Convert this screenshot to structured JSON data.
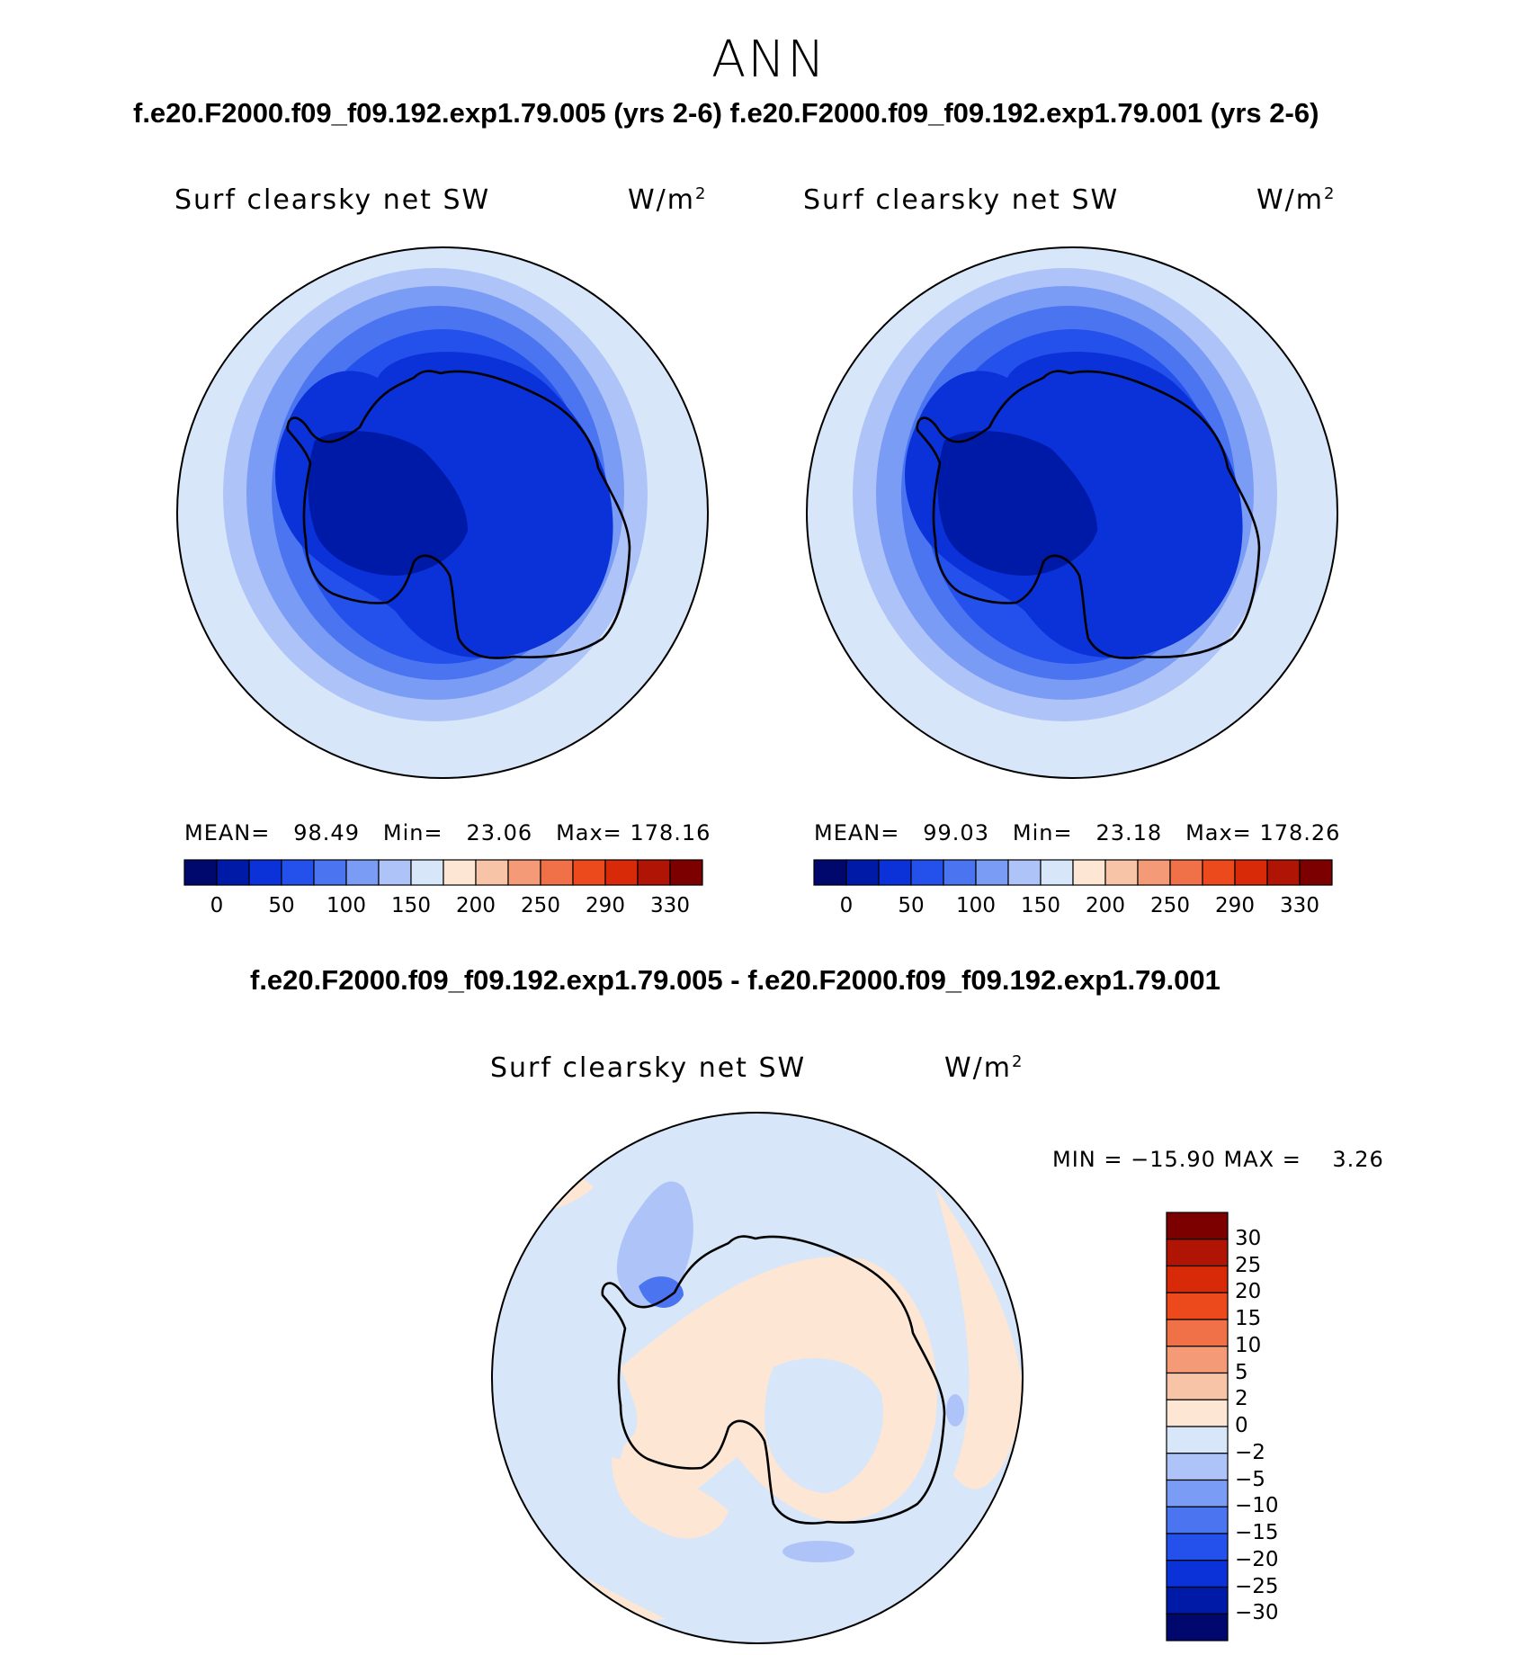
{
  "header": {
    "season": "ANN",
    "top_title": "f.e20.F2000.f09_f09.192.exp1.79.005 (yrs 2-6) f.e20.F2000.f09_f09.192.exp1.79.001 (yrs 2-6)",
    "diff_title": "f.e20.F2000.f09_f09.192.exp1.79.005 - f.e20.F2000.f09_f09.192.exp1.79.001"
  },
  "panels": [
    {
      "variable": "Surf clearsky net SW",
      "units": "W/m",
      "units_sup": "2",
      "stats": {
        "mean_label": "MEAN=",
        "mean": "98.49",
        "min_label": "Min=",
        "min": "23.06",
        "max_label": "Max=",
        "max": "178.16"
      }
    },
    {
      "variable": "Surf clearsky net SW",
      "units": "W/m",
      "units_sup": "2",
      "stats": {
        "mean_label": "MEAN=",
        "mean": "99.03",
        "min_label": "Min=",
        "min": "23.18",
        "max_label": "Max=",
        "max": "178.26"
      }
    }
  ],
  "diff_panel": {
    "variable": "Surf clearsky net SW",
    "units": "W/m",
    "units_sup": "2",
    "range_text": "MIN = −15.90 MAX =    3.26"
  },
  "colorbar_main": {
    "labels": [
      "0",
      "50",
      "100",
      "150",
      "200",
      "250",
      "290",
      "330"
    ],
    "colors": [
      "#00086e",
      "#001aa8",
      "#0a32d8",
      "#2450ec",
      "#4a74f0",
      "#7a9cf4",
      "#aec4f8",
      "#d8e6fa",
      "#fde6d4",
      "#f8c4a8",
      "#f49a76",
      "#f07048",
      "#ec4a1c",
      "#d82a08",
      "#b01404",
      "#7c0000"
    ]
  },
  "colorbar_diff": {
    "labels": [
      "30",
      "25",
      "20",
      "15",
      "10",
      "5",
      "2",
      "0",
      "−2",
      "−5",
      "−10",
      "−15",
      "−20",
      "−25",
      "−30"
    ],
    "colors": [
      "#7c0000",
      "#b01404",
      "#d82a08",
      "#ec4a1c",
      "#f07048",
      "#f49a76",
      "#f8c4a8",
      "#fde6d4",
      "#d8e6fa",
      "#aec4f8",
      "#7a9cf4",
      "#4a74f0",
      "#2450ec",
      "#0a32d8",
      "#001aa8",
      "#00086e"
    ]
  }
}
